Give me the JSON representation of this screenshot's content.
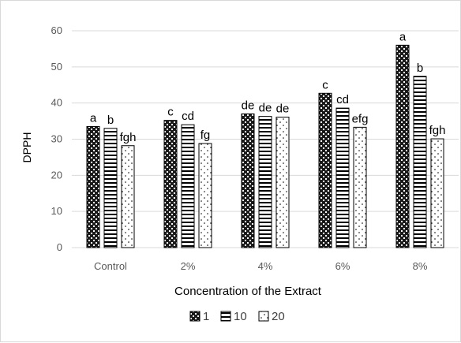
{
  "chart_data": {
    "type": "bar",
    "title": "",
    "xlabel": "Concentration of the Extract",
    "ylabel": "DPPH",
    "ylim": [
      0,
      60
    ],
    "yticks": [
      "0",
      "10",
      "20",
      "30",
      "40",
      "50",
      "60"
    ],
    "grid": true,
    "legend_position": "bottom",
    "categories": [
      "Control",
      "2%",
      "4%",
      "6%",
      "8%"
    ],
    "series": [
      {
        "name": "1",
        "pattern": "checker-dark",
        "values": [
          33.5,
          35.2,
          37.0,
          42.7,
          56.0
        ],
        "labels": [
          "a",
          "c",
          "de",
          "c",
          "a"
        ]
      },
      {
        "name": "10",
        "pattern": "horizontal-lines",
        "values": [
          33.0,
          34.0,
          36.3,
          38.6,
          47.4
        ],
        "labels": [
          "b",
          "cd",
          "de",
          "cd",
          "b"
        ]
      },
      {
        "name": "20",
        "pattern": "dotted",
        "values": [
          28.2,
          28.8,
          36.1,
          33.3,
          30.1
        ],
        "labels": [
          "fgh",
          "fg",
          "de",
          "efg",
          "fgh"
        ]
      }
    ]
  }
}
